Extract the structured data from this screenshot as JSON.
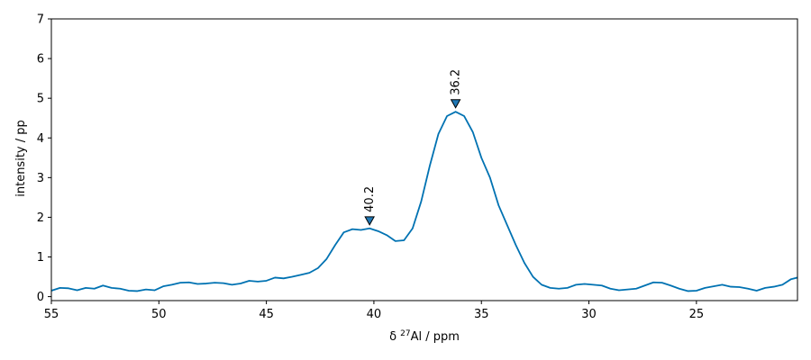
{
  "chart_data": {
    "type": "line",
    "title": "",
    "xlabel_prefix": "δ ",
    "xlabel_sup": "27",
    "xlabel_suffix": "Al / ppm",
    "ylabel": "intensity / pp",
    "xlim": [
      55,
      20.3
    ],
    "ylim": [
      -0.1,
      7
    ],
    "x_ticks": [
      55,
      50,
      45,
      40,
      35,
      30,
      25
    ],
    "y_ticks": [
      0,
      1,
      2,
      3,
      4,
      5,
      6,
      7
    ],
    "grid": false,
    "line_color": "#0072b2",
    "marker_color": "#1f77b4",
    "series": [
      {
        "x": [
          55.0,
          54.6,
          54.2,
          53.8,
          53.4,
          53.0,
          52.6,
          52.2,
          51.8,
          51.4,
          51.0,
          50.6,
          50.2,
          49.8,
          49.4,
          49.0,
          48.6,
          48.2,
          47.8,
          47.4,
          47.0,
          46.6,
          46.2,
          45.8,
          45.4,
          45.0,
          44.6,
          44.2,
          43.8,
          43.4,
          43.0,
          42.6,
          42.2,
          41.8,
          41.4,
          41.0,
          40.6,
          40.2,
          39.8,
          39.4,
          39.0,
          38.6,
          38.2,
          37.8,
          37.4,
          37.0,
          36.6,
          36.2,
          35.8,
          35.4,
          35.0,
          34.6,
          34.2,
          33.8,
          33.4,
          33.0,
          32.6,
          32.2,
          31.8,
          31.4,
          31.0,
          30.6,
          30.2,
          29.8,
          29.4,
          29.0,
          28.6,
          28.2,
          27.8,
          27.4,
          27.0,
          26.6,
          26.2,
          25.8,
          25.4,
          25.0,
          24.6,
          24.2,
          23.8,
          23.4,
          23.0,
          22.6,
          22.2,
          21.8,
          21.4,
          21.0,
          20.6,
          20.3
        ],
        "y": [
          0.15,
          0.22,
          0.21,
          0.16,
          0.22,
          0.2,
          0.28,
          0.22,
          0.2,
          0.15,
          0.14,
          0.18,
          0.16,
          0.26,
          0.3,
          0.35,
          0.36,
          0.32,
          0.33,
          0.35,
          0.34,
          0.3,
          0.33,
          0.4,
          0.38,
          0.4,
          0.48,
          0.46,
          0.5,
          0.55,
          0.6,
          0.72,
          0.95,
          1.3,
          1.62,
          1.7,
          1.68,
          1.72,
          1.65,
          1.55,
          1.4,
          1.42,
          1.72,
          2.4,
          3.3,
          4.1,
          4.55,
          4.66,
          4.55,
          4.15,
          3.5,
          3.0,
          2.3,
          1.8,
          1.3,
          0.85,
          0.5,
          0.3,
          0.22,
          0.2,
          0.22,
          0.3,
          0.32,
          0.3,
          0.28,
          0.2,
          0.16,
          0.18,
          0.2,
          0.28,
          0.36,
          0.35,
          0.28,
          0.2,
          0.14,
          0.15,
          0.22,
          0.26,
          0.3,
          0.25,
          0.24,
          0.2,
          0.15,
          0.22,
          0.25,
          0.3,
          0.44,
          0.48
        ]
      }
    ],
    "annotations": [
      {
        "label": "40.2",
        "x": 40.2,
        "y": 1.9
      },
      {
        "label": "36.2",
        "x": 36.2,
        "y": 4.85
      }
    ]
  }
}
